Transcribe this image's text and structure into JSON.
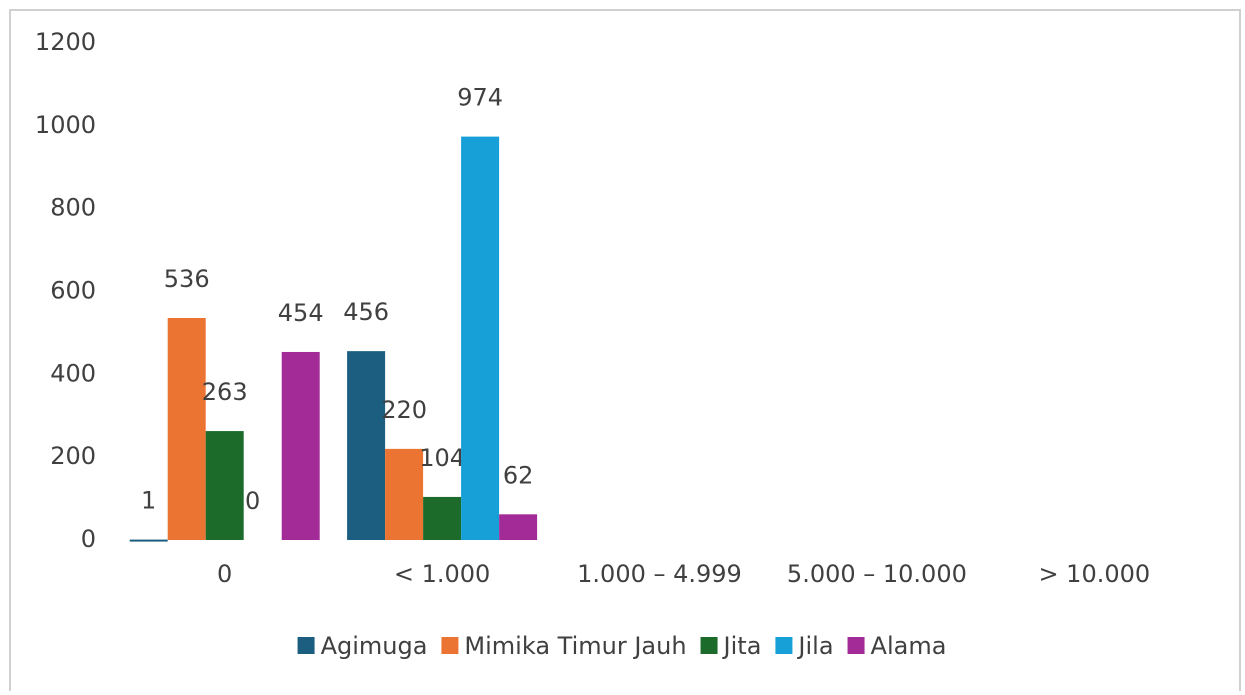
{
  "chart_data": {
    "type": "bar",
    "categories": [
      "0",
      "< 1.000",
      "1.000 – 4.999",
      "5.000 – 10.000",
      "> 10.000"
    ],
    "series": [
      {
        "name": "Agimuga",
        "color": "#1b5e7f",
        "values": [
          1,
          456,
          null,
          null,
          null
        ]
      },
      {
        "name": "Mimika Timur Jauh",
        "color": "#ec7432",
        "values": [
          536,
          220,
          null,
          null,
          null
        ]
      },
      {
        "name": "Jita",
        "color": "#1d6b2a",
        "values": [
          263,
          104,
          null,
          null,
          null
        ]
      },
      {
        "name": "Jila",
        "color": "#17a0d7",
        "values": [
          0,
          974,
          null,
          null,
          null
        ]
      },
      {
        "name": "Alama",
        "color": "#a22b97",
        "values": [
          454,
          62,
          null,
          null,
          null
        ]
      }
    ],
    "ylim": [
      0,
      1200
    ],
    "yticks": [
      0,
      200,
      400,
      600,
      800,
      1000,
      1200
    ],
    "grid": false,
    "legend": "bottom"
  }
}
